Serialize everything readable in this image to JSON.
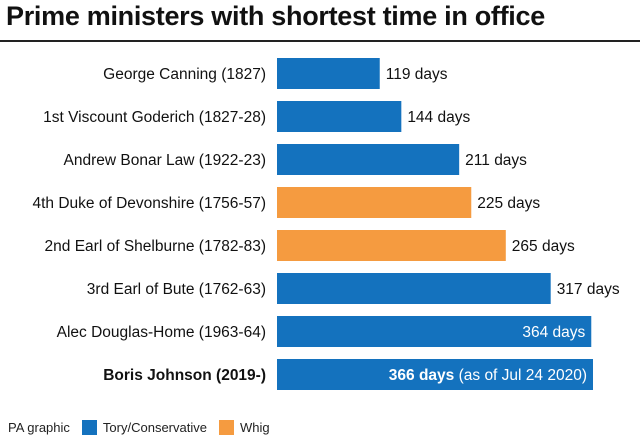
{
  "title": "Prime ministers with shortest time in office",
  "footer": {
    "credit": "PA graphic",
    "legend": [
      {
        "label": "Tory/Conservative",
        "color": "#1472be"
      },
      {
        "label": "Whig",
        "color": "#f59b40"
      }
    ]
  },
  "chart_data": {
    "type": "bar",
    "orientation": "horizontal",
    "title": "Prime ministers with shortest time in office",
    "categories": [
      "George Canning (1827)",
      "1st Viscount Goderich (1827-28)",
      "Andrew Bonar Law (1922-23)",
      "4th Duke of Devonshire (1756-57)",
      "2nd Earl of Shelburne (1782-83)",
      "3rd Earl of Bute (1762-63)",
      "Alec Douglas-Home (1963-64)",
      "Boris Johnson (2019-)"
    ],
    "values": [
      119,
      144,
      211,
      225,
      265,
      317,
      364,
      366
    ],
    "value_labels": [
      "119 days",
      "144 days",
      "211 days",
      "225 days",
      "265 days",
      "317 days",
      "364 days",
      "366 days"
    ],
    "value_suffix_last": "(as of Jul 24 2020)",
    "parties": [
      "Tory/Conservative",
      "Tory/Conservative",
      "Tory/Conservative",
      "Whig",
      "Whig",
      "Tory/Conservative",
      "Tory/Conservative",
      "Tory/Conservative"
    ],
    "colors": {
      "Tory/Conservative": "#1472be",
      "Whig": "#f59b40"
    },
    "highlight_index": 7,
    "legend_placement": "bottom-left",
    "grid": false,
    "xlim": [
      0,
      366
    ]
  }
}
